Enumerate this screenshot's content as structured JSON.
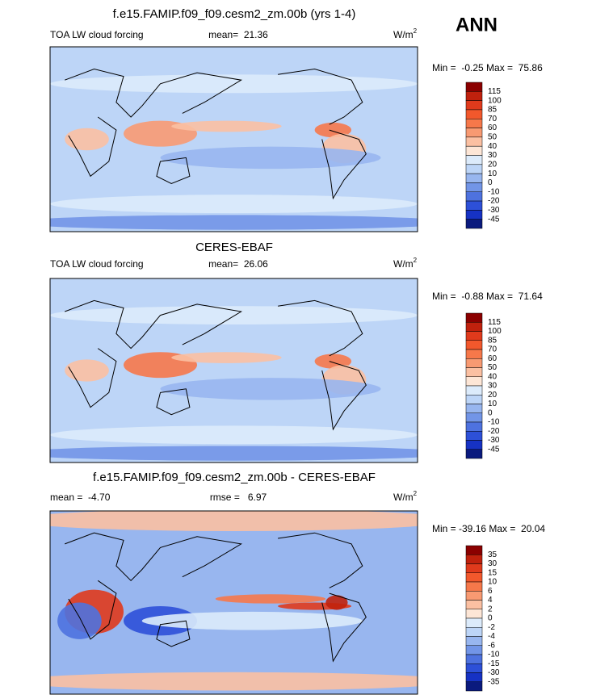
{
  "header": {
    "season": "ANN"
  },
  "panels": [
    {
      "title": "f.e15.FAMIP.f09_f09.cesm2_zm.00b (yrs 1-4)",
      "left": "TOA LW cloud forcing",
      "center": "mean=  21.36",
      "units": "W/m",
      "units_exp": "2",
      "minmax": "Min =  -0.25 Max =  75.86",
      "colorbar": {
        "levels": [
          115,
          100,
          85,
          70,
          60,
          50,
          40,
          30,
          20,
          10,
          0,
          -10,
          -20,
          -30,
          -45
        ],
        "colors": [
          "#8b0000",
          "#c0210d",
          "#e03a1c",
          "#f2582c",
          "#f6784a",
          "#f89a72",
          "#fbc0a2",
          "#fde6d6",
          "#dcebfb",
          "#bdd5f7",
          "#98b6ef",
          "#7295e7",
          "#4e72df",
          "#2d50d8",
          "#1632c4",
          "#0a1a7e"
        ]
      }
    },
    {
      "title": "CERES-EBAF",
      "left": "TOA LW cloud forcing",
      "center": "mean=  26.06",
      "units": "W/m",
      "units_exp": "2",
      "minmax": "Min =  -0.88 Max =  71.64",
      "colorbar": {
        "levels": [
          115,
          100,
          85,
          70,
          60,
          50,
          40,
          30,
          20,
          10,
          0,
          -10,
          -20,
          -30,
          -45
        ],
        "colors": [
          "#8b0000",
          "#c0210d",
          "#e03a1c",
          "#f2582c",
          "#f6784a",
          "#f89a72",
          "#fbc0a2",
          "#fde6d6",
          "#dcebfb",
          "#bdd5f7",
          "#98b6ef",
          "#7295e7",
          "#4e72df",
          "#2d50d8",
          "#1632c4",
          "#0a1a7e"
        ]
      }
    },
    {
      "title": "f.e15.FAMIP.f09_f09.cesm2_zm.00b - CERES-EBAF",
      "left": "mean =  -4.70",
      "center": "rmse =   6.97",
      "units": "W/m",
      "units_exp": "2",
      "minmax": "Min = -39.16 Max =  20.04",
      "colorbar": {
        "levels": [
          35,
          30,
          15,
          10,
          6,
          4,
          2,
          0,
          -2,
          -4,
          -6,
          -10,
          -15,
          -30,
          -35
        ],
        "colors": [
          "#8b0000",
          "#c0210d",
          "#e03a1c",
          "#f2582c",
          "#f6784a",
          "#f89a72",
          "#fbc0a2",
          "#fde6d6",
          "#dcebfb",
          "#bdd5f7",
          "#98b6ef",
          "#7295e7",
          "#4e72df",
          "#2d50d8",
          "#1632c4",
          "#0a1a7e"
        ]
      }
    }
  ]
}
